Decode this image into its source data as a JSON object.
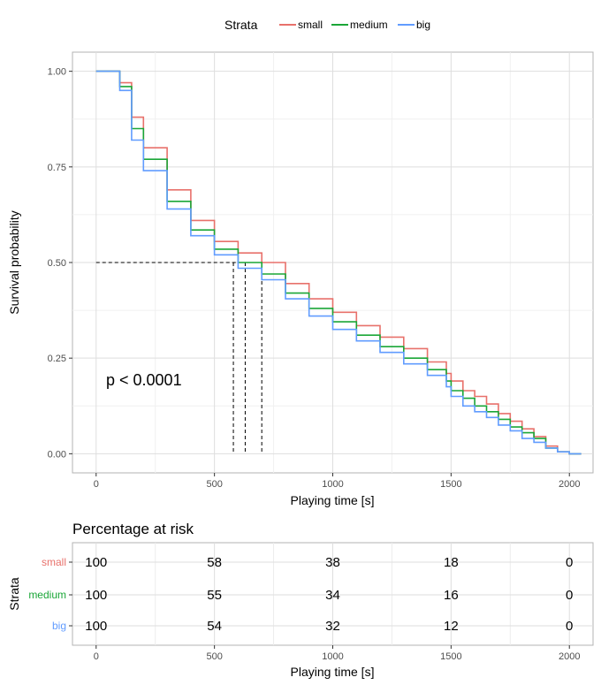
{
  "legend": {
    "title": "Strata",
    "items": [
      {
        "label": "small",
        "color": "#e8716b"
      },
      {
        "label": "medium",
        "color": "#1aa637"
      },
      {
        "label": "big",
        "color": "#619cff"
      }
    ]
  },
  "chart_data": {
    "type": "line",
    "step": true,
    "xlabel": "Playing time [s]",
    "ylabel": "Survival probability",
    "xlim": [
      -100,
      2100
    ],
    "ylim": [
      -0.05,
      1.05
    ],
    "xticks": [
      0,
      500,
      1000,
      1500,
      2000
    ],
    "yticks": [
      0.0,
      0.25,
      0.5,
      0.75,
      1.0
    ],
    "ytick_labels": [
      "0.00",
      "0.25",
      "0.50",
      "0.75",
      "1.00"
    ],
    "grid": true,
    "legend_position": "top",
    "annotation": "p < 0.0001",
    "median_line_level": 0.5,
    "medians": [
      700,
      630,
      580
    ],
    "series": [
      {
        "name": "small",
        "color": "#e8716b",
        "x": [
          0,
          80,
          100,
          150,
          200,
          300,
          400,
          500,
          600,
          700,
          800,
          900,
          1000,
          1100,
          1200,
          1300,
          1400,
          1480,
          1500,
          1550,
          1600,
          1650,
          1700,
          1750,
          1800,
          1850,
          1900,
          1950,
          2000,
          2050
        ],
        "y": [
          1.0,
          1.0,
          0.97,
          0.88,
          0.8,
          0.69,
          0.61,
          0.555,
          0.525,
          0.5,
          0.445,
          0.405,
          0.37,
          0.335,
          0.305,
          0.275,
          0.24,
          0.21,
          0.19,
          0.165,
          0.15,
          0.13,
          0.105,
          0.085,
          0.065,
          0.045,
          0.02,
          0.005,
          0.0,
          0.0
        ]
      },
      {
        "name": "medium",
        "color": "#1aa637",
        "x": [
          0,
          80,
          100,
          150,
          200,
          300,
          400,
          500,
          600,
          700,
          800,
          900,
          1000,
          1100,
          1200,
          1300,
          1400,
          1480,
          1500,
          1550,
          1600,
          1650,
          1700,
          1750,
          1800,
          1850,
          1900,
          1950,
          2000,
          2050
        ],
        "y": [
          1.0,
          1.0,
          0.96,
          0.85,
          0.77,
          0.66,
          0.585,
          0.535,
          0.5,
          0.47,
          0.42,
          0.38,
          0.345,
          0.31,
          0.28,
          0.25,
          0.22,
          0.19,
          0.165,
          0.145,
          0.125,
          0.11,
          0.09,
          0.07,
          0.055,
          0.04,
          0.015,
          0.005,
          0.0,
          0.0
        ]
      },
      {
        "name": "big",
        "color": "#619cff",
        "x": [
          0,
          80,
          100,
          150,
          200,
          300,
          400,
          500,
          600,
          700,
          800,
          900,
          1000,
          1100,
          1200,
          1300,
          1400,
          1480,
          1500,
          1550,
          1600,
          1650,
          1700,
          1750,
          1800,
          1850,
          1900,
          1950,
          2000,
          2050
        ],
        "y": [
          1.0,
          1.0,
          0.95,
          0.82,
          0.74,
          0.64,
          0.57,
          0.52,
          0.485,
          0.455,
          0.405,
          0.36,
          0.325,
          0.295,
          0.265,
          0.235,
          0.205,
          0.175,
          0.15,
          0.125,
          0.11,
          0.095,
          0.075,
          0.06,
          0.04,
          0.03,
          0.015,
          0.005,
          0.0,
          0.0
        ]
      }
    ]
  },
  "risk_table": {
    "title": "Percentage at risk",
    "ylabel": "Strata",
    "xlabel": "Playing time [s]",
    "times": [
      0,
      500,
      1000,
      1500,
      2000
    ],
    "rows": [
      {
        "label": "small",
        "color": "#e8716b",
        "values": [
          "100",
          "58",
          "38",
          "18",
          "0"
        ]
      },
      {
        "label": "medium",
        "color": "#1aa637",
        "values": [
          "100",
          "55",
          "34",
          "16",
          "0"
        ]
      },
      {
        "label": "big",
        "color": "#619cff",
        "values": [
          "100",
          "54",
          "32",
          "12",
          "0"
        ]
      }
    ]
  }
}
